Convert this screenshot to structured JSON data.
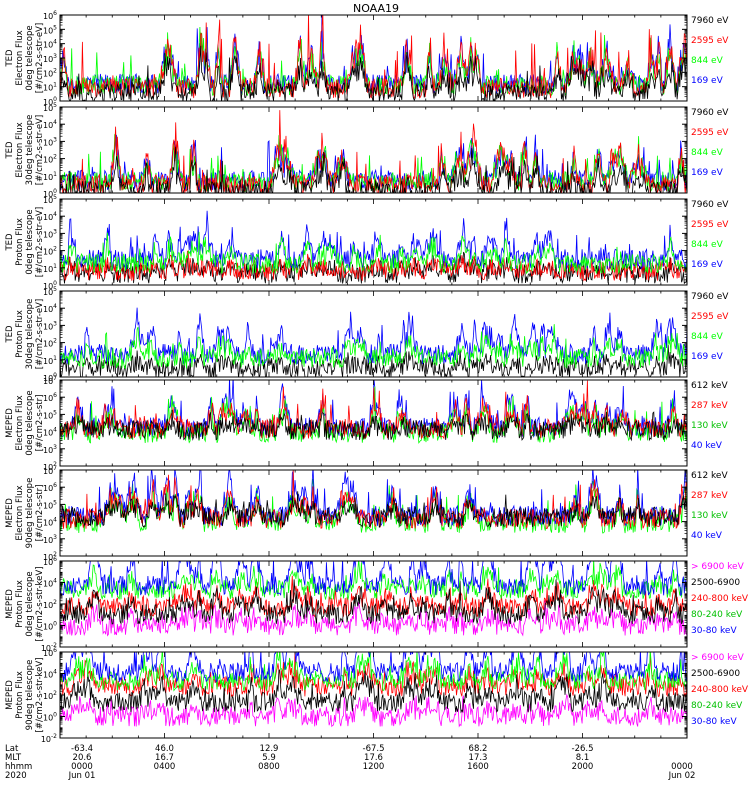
{
  "title": "NOAA19",
  "colors": {
    "black": "#000000",
    "red": "#ff0000",
    "green": "#00ff00",
    "blue": "#0000ff",
    "magenta": "#ff00ff",
    "dkgreen": "#00c000"
  },
  "chart_data": [
    {
      "type": "line",
      "ylabel": [
        "TED",
        "Electron Flux",
        "0deg telescope",
        "[#/cm2-s-str-eV]"
      ],
      "ylim": [
        1,
        1000000
      ],
      "yscale": "log",
      "ticks": [
        {
          "v": 1,
          "t": "10",
          "e": "0"
        },
        {
          "v": 10,
          "t": "10",
          "e": "1"
        },
        {
          "v": 100,
          "t": "10",
          "e": "2"
        },
        {
          "v": 1000,
          "t": "10",
          "e": "3"
        },
        {
          "v": 10000,
          "t": "10",
          "e": "4"
        },
        {
          "v": 100000,
          "t": "10",
          "e": "5"
        },
        {
          "v": 1000000,
          "t": "10",
          "e": "6"
        }
      ],
      "legend": [
        {
          "label": "7960 eV",
          "color": "#000000"
        },
        {
          "label": "2595 eV",
          "color": "#ff0000"
        },
        {
          "label": "844 eV",
          "color": "#00ff00"
        },
        {
          "label": "169 eV",
          "color": "#0000ff"
        }
      ],
      "series": [
        {
          "color": "#0000ff",
          "base": 1.2,
          "peak": 3.2
        },
        {
          "color": "#00ff00",
          "base": 1.1,
          "peak": 2.8
        },
        {
          "color": "#ff0000",
          "base": 0.9,
          "peak": 3.8
        },
        {
          "color": "#000000",
          "base": 0.6,
          "peak": 2.3
        }
      ]
    },
    {
      "type": "line",
      "ylabel": [
        "TED",
        "Electron Flux",
        "30deg telescope",
        "[#/cm2-s-str-eV]"
      ],
      "ylim": [
        1,
        100000
      ],
      "yscale": "log",
      "ticks": [
        {
          "v": 1,
          "t": "10",
          "e": "0"
        },
        {
          "v": 10,
          "t": "10",
          "e": "1"
        },
        {
          "v": 100,
          "t": "10",
          "e": "2"
        },
        {
          "v": 1000,
          "t": "10",
          "e": "3"
        },
        {
          "v": 10000,
          "t": "10",
          "e": "4"
        },
        {
          "v": 100000,
          "t": "10",
          "e": "5"
        }
      ],
      "legend": [
        {
          "label": "7960 eV",
          "color": "#000000"
        },
        {
          "label": "2595 eV",
          "color": "#ff0000"
        },
        {
          "label": "844 eV",
          "color": "#00ff00"
        },
        {
          "label": "169 eV",
          "color": "#0000ff"
        }
      ],
      "series": [
        {
          "color": "#0000ff",
          "base": 0.9,
          "peak": 2.8
        },
        {
          "color": "#00ff00",
          "base": 0.8,
          "peak": 2.6
        },
        {
          "color": "#ff0000",
          "base": 0.6,
          "peak": 3.4
        },
        {
          "color": "#000000",
          "base": 0.2,
          "peak": 2.0
        }
      ]
    },
    {
      "type": "line",
      "ylabel": [
        "TED",
        "Proton Flux",
        "0deg telescope",
        "[#/cm2-s-str-eV]"
      ],
      "ylim": [
        1,
        100000
      ],
      "yscale": "log",
      "ticks": [
        {
          "v": 1,
          "t": "10",
          "e": "0"
        },
        {
          "v": 10,
          "t": "10",
          "e": "1"
        },
        {
          "v": 100,
          "t": "10",
          "e": "2"
        },
        {
          "v": 1000,
          "t": "10",
          "e": "3"
        },
        {
          "v": 10000,
          "t": "10",
          "e": "4"
        },
        {
          "v": 100000,
          "t": "10",
          "e": "5"
        }
      ],
      "legend": [
        {
          "label": "7960 eV",
          "color": "#000000"
        },
        {
          "label": "2595 eV",
          "color": "#ff0000"
        },
        {
          "label": "844 eV",
          "color": "#00ff00"
        },
        {
          "label": "169 eV",
          "color": "#0000ff"
        }
      ],
      "series": [
        {
          "color": "#000000",
          "base": 0.8,
          "peak": 0.8
        },
        {
          "color": "#ff0000",
          "base": 1.0,
          "peak": 0.6
        },
        {
          "color": "#0000ff",
          "base": 1.8,
          "peak": 2.4
        },
        {
          "color": "#00ff00",
          "base": 1.5,
          "peak": 1.6
        }
      ]
    },
    {
      "type": "line",
      "ylabel": [
        "TED",
        "Proton Flux",
        "30deg telescope",
        "[#/cm2-s-str-eV]"
      ],
      "ylim": [
        1,
        100000
      ],
      "yscale": "log",
      "ticks": [
        {
          "v": 1,
          "t": "10",
          "e": "0"
        },
        {
          "v": 10,
          "t": "10",
          "e": "1"
        },
        {
          "v": 100,
          "t": "10",
          "e": "2"
        },
        {
          "v": 1000,
          "t": "10",
          "e": "3"
        },
        {
          "v": 10000,
          "t": "10",
          "e": "4"
        },
        {
          "v": 100000,
          "t": "10",
          "e": "5"
        }
      ],
      "legend": [
        {
          "label": "7960 eV",
          "color": "#000000"
        },
        {
          "label": "2595 eV",
          "color": "#ff0000"
        },
        {
          "label": "844 eV",
          "color": "#00ff00"
        },
        {
          "label": "169 eV",
          "color": "#0000ff"
        }
      ],
      "series": [
        {
          "color": "#000000",
          "base": 0.6,
          "peak": 0.6
        },
        {
          "color": "#0000ff",
          "base": 1.6,
          "peak": 2.5
        },
        {
          "color": "#00ff00",
          "base": 1.3,
          "peak": 1.5
        }
      ]
    },
    {
      "type": "line",
      "ylabel": [
        "MEPED",
        "Electron Flux",
        "0deg telescope",
        "[#/cm2-s-str]"
      ],
      "ylim": [
        100,
        10000000
      ],
      "yscale": "log",
      "ticks": [
        {
          "v": 100,
          "t": "10",
          "e": "2"
        },
        {
          "v": 1000,
          "t": "10",
          "e": "3"
        },
        {
          "v": 10000,
          "t": "10",
          "e": "4"
        },
        {
          "v": 100000,
          "t": "10",
          "e": "5"
        },
        {
          "v": 1000000,
          "t": "10",
          "e": "6"
        },
        {
          "v": 10000000,
          "t": "10",
          "e": "7"
        }
      ],
      "legend": [
        {
          "label": "612 keV",
          "color": "#000000"
        },
        {
          "label": "287 keV",
          "color": "#ff0000"
        },
        {
          "label": "130 keV",
          "color": "#00c000"
        },
        {
          "label": "40 keV",
          "color": "#0000ff"
        }
      ],
      "series": [
        {
          "color": "#0000ff",
          "base": 2.7,
          "peak": 2.6
        },
        {
          "color": "#00ff00",
          "base": 2.3,
          "peak": 2.2
        },
        {
          "color": "#ff0000",
          "base": 2.6,
          "peak": 2.0
        },
        {
          "color": "#000000",
          "base": 2.5,
          "peak": 0.8
        }
      ]
    },
    {
      "type": "line",
      "ylabel": [
        "MEPED",
        "Electron Flux",
        "90deg telescope",
        "[#/cm2-s-str]"
      ],
      "ylim": [
        100,
        10000000
      ],
      "yscale": "log",
      "ticks": [
        {
          "v": 100,
          "t": "10",
          "e": "2"
        },
        {
          "v": 1000,
          "t": "10",
          "e": "3"
        },
        {
          "v": 10000,
          "t": "10",
          "e": "4"
        },
        {
          "v": 100000,
          "t": "10",
          "e": "5"
        },
        {
          "v": 1000000,
          "t": "10",
          "e": "6"
        },
        {
          "v": 10000000,
          "t": "10",
          "e": "7"
        }
      ],
      "legend": [
        {
          "label": "612 keV",
          "color": "#000000"
        },
        {
          "label": "287 keV",
          "color": "#ff0000"
        },
        {
          "label": "130 keV",
          "color": "#00c000"
        },
        {
          "label": "40 keV",
          "color": "#0000ff"
        }
      ],
      "series": [
        {
          "color": "#00ff00",
          "base": 2.3,
          "peak": 2.4
        },
        {
          "color": "#0000ff",
          "base": 2.8,
          "peak": 3.0
        },
        {
          "color": "#ff0000",
          "base": 2.6,
          "peak": 2.3
        },
        {
          "color": "#000000",
          "base": 2.7,
          "peak": 1.2
        }
      ]
    },
    {
      "type": "line",
      "ylabel": [
        "MEPED",
        "Proton Flux",
        "0deg telescope",
        "[#/cm2-s-str-keV]"
      ],
      "ylim": [
        0.01,
        1000000
      ],
      "yscale": "log",
      "ticks": [
        {
          "v": 0.01,
          "t": "10",
          "e": "-2"
        },
        {
          "v": 1,
          "t": "10",
          "e": "0"
        },
        {
          "v": 100,
          "t": "10",
          "e": "2"
        },
        {
          "v": 10000,
          "t": "10",
          "e": "4"
        },
        {
          "v": 1000000,
          "t": "10",
          "e": "6"
        }
      ],
      "legend": [
        {
          "label": "> 6900 keV",
          "color": "#ff00ff"
        },
        {
          "label": "2500-6900",
          "color": "#000000"
        },
        {
          "label": "240-800 keV",
          "color": "#ff0000"
        },
        {
          "label": "80-240 keV",
          "color": "#00c000"
        },
        {
          "label": "30-80 keV",
          "color": "#0000ff"
        }
      ],
      "series": [
        {
          "color": "#ff00ff",
          "base": 1.5,
          "peak": 1.0
        },
        {
          "color": "#ff0000",
          "base": 2.8,
          "peak": 1.2
        },
        {
          "color": "#000000",
          "base": 2.3,
          "peak": 1.5
        },
        {
          "color": "#00ff00",
          "base": 4.0,
          "peak": 1.3
        },
        {
          "color": "#0000ff",
          "base": 4.3,
          "peak": 3.5
        }
      ]
    },
    {
      "type": "line",
      "ylabel": [
        "MEPED",
        "Proton Flux",
        "90deg telescope",
        "[#/cm2-s-str-keV]"
      ],
      "ylim": [
        0.01,
        1000000
      ],
      "yscale": "log",
      "ticks": [
        {
          "v": 0.01,
          "t": "10",
          "e": "-2"
        },
        {
          "v": 1,
          "t": "10",
          "e": "0"
        },
        {
          "v": 100,
          "t": "10",
          "e": "2"
        },
        {
          "v": 10000,
          "t": "10",
          "e": "4"
        },
        {
          "v": 1000000,
          "t": "10",
          "e": "6"
        }
      ],
      "legend": [
        {
          "label": "> 6900 keV",
          "color": "#ff00ff"
        },
        {
          "label": "2500-6900",
          "color": "#000000"
        },
        {
          "label": "240-800 keV",
          "color": "#ff0000"
        },
        {
          "label": "80-240 keV",
          "color": "#00c000"
        },
        {
          "label": "30-80 keV",
          "color": "#0000ff"
        }
      ],
      "series": [
        {
          "color": "#ff00ff",
          "base": 1.5,
          "peak": 1.0
        },
        {
          "color": "#ff0000",
          "base": 3.6,
          "peak": 1.4
        },
        {
          "color": "#000000",
          "base": 2.5,
          "peak": 1.6
        },
        {
          "color": "#00ff00",
          "base": 4.0,
          "peak": 1.6
        },
        {
          "color": "#0000ff",
          "base": 4.6,
          "peak": 3.6
        }
      ]
    }
  ],
  "x_axis": {
    "row_labels": [
      "Lat",
      "MLT",
      "hhmm",
      "2020"
    ],
    "ticks": [
      {
        "lat": "-63.4",
        "mlt": "20.6",
        "time": "0000",
        "date": "Jun 01"
      },
      {
        "lat": "46.0",
        "mlt": "16.7",
        "time": "0400",
        "date": ""
      },
      {
        "lat": "12.9",
        "mlt": "5.9",
        "time": "0800",
        "date": ""
      },
      {
        "lat": "-67.5",
        "mlt": "17.6",
        "time": "1200",
        "date": ""
      },
      {
        "lat": "68.2",
        "mlt": "17.3",
        "time": "1600",
        "date": ""
      },
      {
        "lat": "-26.5",
        "mlt": "8.1",
        "time": "2000",
        "date": ""
      },
      {
        "lat": "",
        "mlt": "",
        "time": "0000",
        "date": "Jun 02"
      }
    ]
  }
}
